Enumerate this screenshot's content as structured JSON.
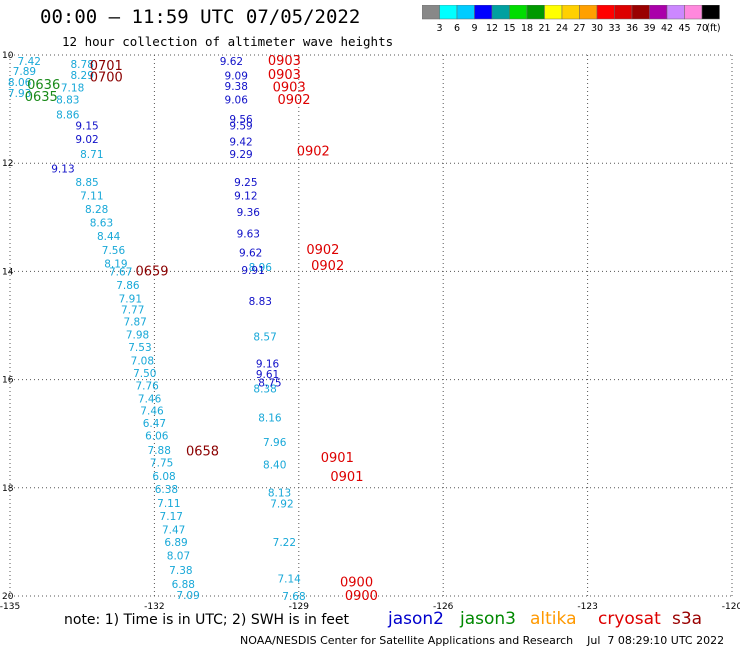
{
  "header": {
    "title": "00:00 – 11:59 UTC 07/05/2022",
    "subtitle": "12 hour collection of altimeter wave heights"
  },
  "legend": {
    "colors": [
      "#888888",
      "#00ffff",
      "#00ccff",
      "#0000ff",
      "#00a0a0",
      "#00dd00",
      "#009900",
      "#ffff00",
      "#ffd000",
      "#ffa000",
      "#ff0000",
      "#dd0000",
      "#990000",
      "#aa00aa",
      "#cc88ff",
      "#ff88dd",
      "#000000"
    ],
    "labels": [
      "3",
      "6",
      "9",
      "12",
      "15",
      "18",
      "21",
      "24",
      "27",
      "30",
      "33",
      "36",
      "39",
      "42",
      "45",
      "70"
    ],
    "unit": "(ft)"
  },
  "axes": {
    "x_ticks": [
      "-135",
      "-132",
      "-129",
      "-126",
      "-123",
      "-120"
    ],
    "y_ticks": [
      "10",
      "12",
      "14",
      "16",
      "18",
      "20"
    ]
  },
  "note": "note: 1) Time is in UTC; 2) SWH is in feet",
  "credit": "NOAA/NESDIS Center for Satellite Applications and Research    Jul  7 08:29:10 UTC 2022",
  "satellites": [
    {
      "name": "jason2",
      "color": "#0000cc"
    },
    {
      "name": "jason3",
      "color": "#008800"
    },
    {
      "name": "altika",
      "color": "#ff9900"
    },
    {
      "name": "cryosat",
      "color": "#dd0000"
    },
    {
      "name": "s3a",
      "color": "#990000"
    }
  ],
  "map": {
    "swh_cyan": [
      {
        "v": "7.42",
        "lon": -134.6,
        "lat": 10.11
      },
      {
        "v": "7.89",
        "lon": -134.7,
        "lat": 10.3
      },
      {
        "v": "8.06",
        "lon": -134.8,
        "lat": 10.5
      },
      {
        "v": "7.93",
        "lon": -134.8,
        "lat": 10.7
      },
      {
        "v": "8.78",
        "lon": -133.5,
        "lat": 10.17
      },
      {
        "v": "8.29",
        "lon": -133.5,
        "lat": 10.37
      },
      {
        "v": "7.18",
        "lon": -133.7,
        "lat": 10.6
      },
      {
        "v": "8.83",
        "lon": -133.8,
        "lat": 10.82
      },
      {
        "v": "8.86",
        "lon": -133.8,
        "lat": 11.1
      },
      {
        "v": "8.71",
        "lon": -133.3,
        "lat": 11.83
      },
      {
        "v": "8.85",
        "lon": -133.4,
        "lat": 12.35
      },
      {
        "v": "7.11",
        "lon": -133.3,
        "lat": 12.6
      },
      {
        "v": "8.28",
        "lon": -133.2,
        "lat": 12.85
      },
      {
        "v": "8.63",
        "lon": -133.1,
        "lat": 13.1
      },
      {
        "v": "8.44",
        "lon": -132.95,
        "lat": 13.35
      },
      {
        "v": "7.56",
        "lon": -132.85,
        "lat": 13.6
      },
      {
        "v": "8.19",
        "lon": -132.8,
        "lat": 13.85
      },
      {
        "v": "7.67",
        "lon": -132.7,
        "lat": 14.0
      },
      {
        "v": "7.86",
        "lon": -132.55,
        "lat": 14.25
      },
      {
        "v": "7.91",
        "lon": -132.5,
        "lat": 14.5
      },
      {
        "v": "7.77",
        "lon": -132.45,
        "lat": 14.7
      },
      {
        "v": "7.87",
        "lon": -132.4,
        "lat": 14.93
      },
      {
        "v": "7.98",
        "lon": -132.35,
        "lat": 15.17
      },
      {
        "v": "7.53",
        "lon": -132.3,
        "lat": 15.4
      },
      {
        "v": "7.08",
        "lon": -132.25,
        "lat": 15.65
      },
      {
        "v": "7.50",
        "lon": -132.2,
        "lat": 15.88
      },
      {
        "v": "7.76",
        "lon": -132.15,
        "lat": 16.11
      },
      {
        "v": "7.46",
        "lon": -132.1,
        "lat": 16.35
      },
      {
        "v": "7.46",
        "lon": -132.05,
        "lat": 16.57
      },
      {
        "v": "6.47",
        "lon": -132.0,
        "lat": 16.8
      },
      {
        "v": "6.06",
        "lon": -131.95,
        "lat": 17.03
      },
      {
        "v": "7.88",
        "lon": -131.9,
        "lat": 17.3
      },
      {
        "v": "7.75",
        "lon": -131.85,
        "lat": 17.53
      },
      {
        "v": "6.08",
        "lon": -131.8,
        "lat": 17.78
      },
      {
        "v": "6.38",
        "lon": -131.75,
        "lat": 18.02
      },
      {
        "v": "7.11",
        "lon": -131.7,
        "lat": 18.28
      },
      {
        "v": "7.17",
        "lon": -131.65,
        "lat": 18.52
      },
      {
        "v": "7.47",
        "lon": -131.6,
        "lat": 18.77
      },
      {
        "v": "6.89",
        "lon": -131.55,
        "lat": 19.0
      },
      {
        "v": "8.07",
        "lon": -131.5,
        "lat": 19.25
      },
      {
        "v": "7.38",
        "lon": -131.45,
        "lat": 19.52
      },
      {
        "v": "6.88",
        "lon": -131.4,
        "lat": 19.78
      },
      {
        "v": "7.09",
        "lon": -131.3,
        "lat": 19.98
      },
      {
        "v": "8.96",
        "lon": -129.8,
        "lat": 13.92
      },
      {
        "v": "8.57",
        "lon": -129.7,
        "lat": 15.2
      },
      {
        "v": "8.38",
        "lon": -129.7,
        "lat": 16.16
      },
      {
        "v": "8.16",
        "lon": -129.6,
        "lat": 16.7
      },
      {
        "v": "7.96",
        "lon": -129.5,
        "lat": 17.15
      },
      {
        "v": "8.40",
        "lon": -129.5,
        "lat": 17.57
      },
      {
        "v": "8.13",
        "lon": -129.4,
        "lat": 18.09
      },
      {
        "v": "7.92",
        "lon": -129.35,
        "lat": 18.29
      },
      {
        "v": "7.22",
        "lon": -129.3,
        "lat": 19.0
      },
      {
        "v": "7.14",
        "lon": -129.2,
        "lat": 19.68
      },
      {
        "v": "7.68",
        "lon": -129.1,
        "lat": 20.0
      }
    ],
    "swh_blue": [
      {
        "v": "9.62",
        "lon": -130.4,
        "lat": 10.11
      },
      {
        "v": "9.09",
        "lon": -130.3,
        "lat": 10.38
      },
      {
        "v": "9.38",
        "lon": -130.3,
        "lat": 10.57
      },
      {
        "v": "9.06",
        "lon": -130.3,
        "lat": 10.82
      },
      {
        "v": "9.56",
        "lon": -130.2,
        "lat": 11.18
      },
      {
        "v": "9.59",
        "lon": -130.2,
        "lat": 11.3
      },
      {
        "v": "9.42",
        "lon": -130.2,
        "lat": 11.6
      },
      {
        "v": "9.29",
        "lon": -130.2,
        "lat": 11.83
      },
      {
        "v": "9.15",
        "lon": -133.4,
        "lat": 11.3
      },
      {
        "v": "9.02",
        "lon": -133.4,
        "lat": 11.55
      },
      {
        "v": "9.13",
        "lon": -133.9,
        "lat": 12.1
      },
      {
        "v": "9.25",
        "lon": -130.1,
        "lat": 12.35
      },
      {
        "v": "9.12",
        "lon": -130.1,
        "lat": 12.6
      },
      {
        "v": "9.36",
        "lon": -130.05,
        "lat": 12.9
      },
      {
        "v": "9.63",
        "lon": -130.05,
        "lat": 13.3
      },
      {
        "v": "9.62",
        "lon": -130.0,
        "lat": 13.65
      },
      {
        "v": "9.91",
        "lon": -129.95,
        "lat": 13.97
      },
      {
        "v": "8.83",
        "lon": -129.8,
        "lat": 14.55
      },
      {
        "v": "9.16",
        "lon": -129.65,
        "lat": 15.7
      },
      {
        "v": "9.61",
        "lon": -129.65,
        "lat": 15.9
      },
      {
        "v": "8.75",
        "lon": -129.6,
        "lat": 16.05
      }
    ],
    "time_red": [
      {
        "v": "0903",
        "lon": -129.3,
        "lat": 10.11
      },
      {
        "v": "0903",
        "lon": -129.3,
        "lat": 10.37
      },
      {
        "v": "0903",
        "lon": -129.2,
        "lat": 10.6
      },
      {
        "v": "0902",
        "lon": -129.1,
        "lat": 10.83
      },
      {
        "v": "0902",
        "lon": -128.7,
        "lat": 11.78
      },
      {
        "v": "0902",
        "lon": -128.5,
        "lat": 13.6
      },
      {
        "v": "0902",
        "lon": -128.4,
        "lat": 13.9
      },
      {
        "v": "0901",
        "lon": -128.2,
        "lat": 17.45
      },
      {
        "v": "0901",
        "lon": -128.0,
        "lat": 17.8
      },
      {
        "v": "0900",
        "lon": -127.8,
        "lat": 19.75
      },
      {
        "v": "0900",
        "lon": -127.7,
        "lat": 20.0
      }
    ],
    "time_dark": [
      {
        "v": "0701",
        "lon": -133.0,
        "lat": 10.2
      },
      {
        "v": "0700",
        "lon": -133.0,
        "lat": 10.42
      },
      {
        "v": "0659",
        "lon": -132.05,
        "lat": 14.0
      },
      {
        "v": "0658",
        "lon": -131.0,
        "lat": 17.33
      }
    ],
    "time_green": [
      {
        "v": "0636",
        "lon": -134.3,
        "lat": 10.55
      },
      {
        "v": "0635",
        "lon": -134.35,
        "lat": 10.78
      }
    ]
  }
}
